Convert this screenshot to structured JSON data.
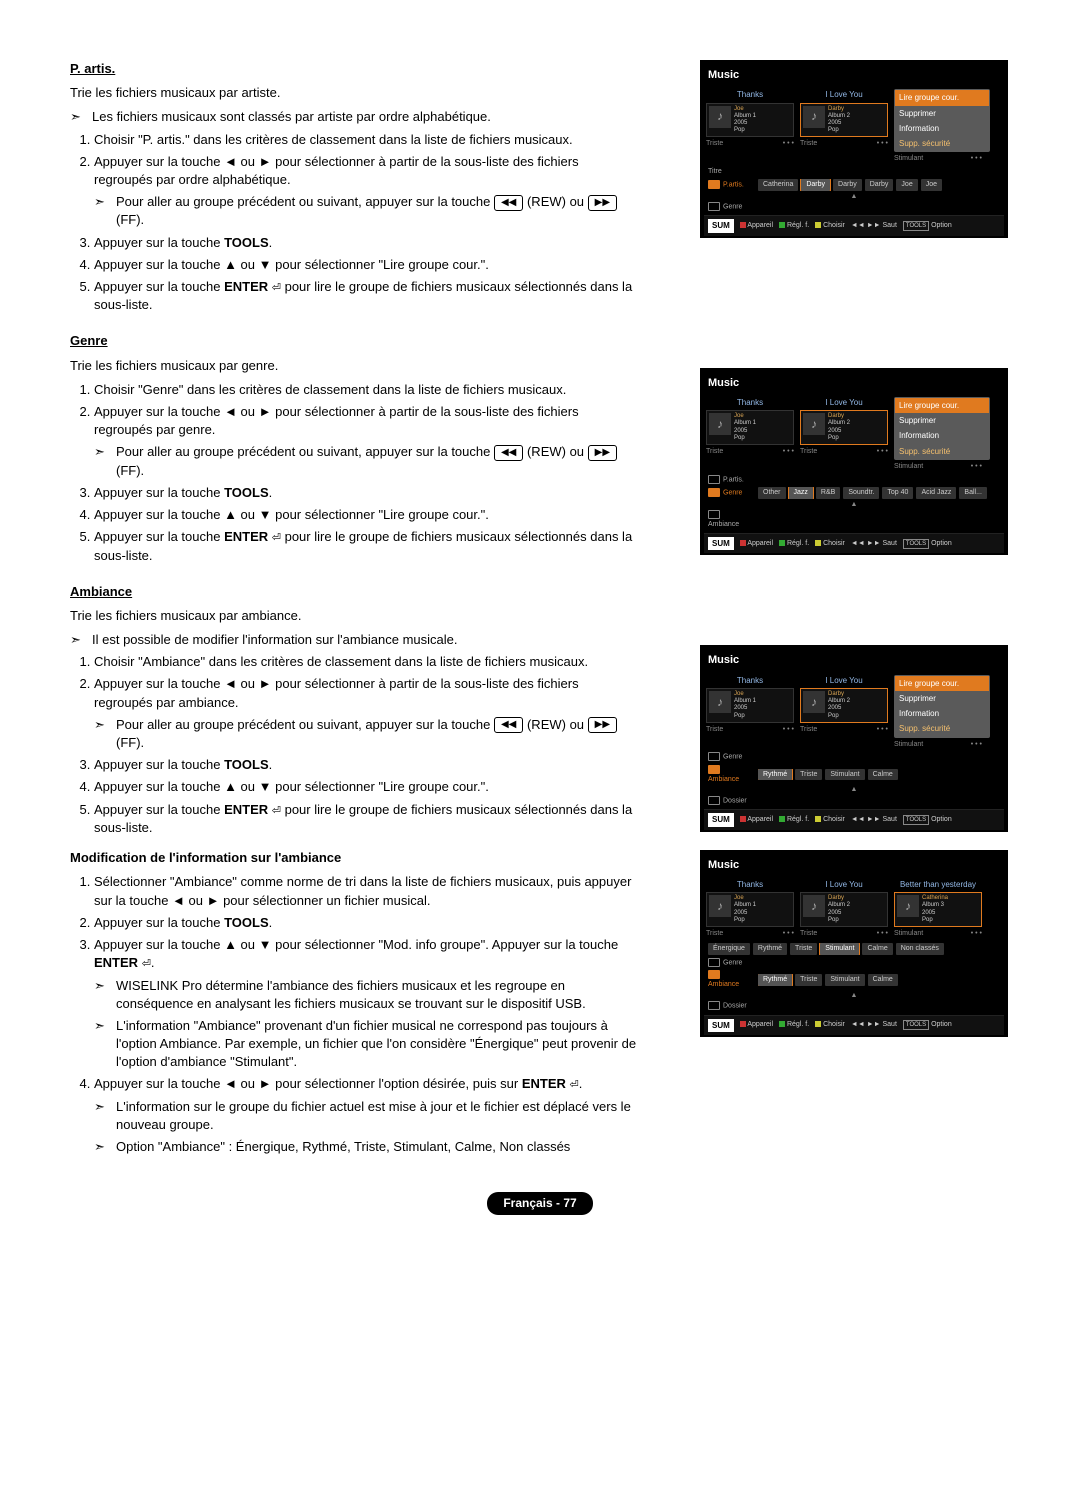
{
  "footer": "Français - 77",
  "common": {
    "key_rew": "◀◀",
    "key_ff": "▶▶",
    "rew_label": " (REW) ou ",
    "ff_label": " (FF).",
    "tools": "TOOLS",
    "enter": "ENTER",
    "enter_icon": "⏎"
  },
  "sections": [
    {
      "id": "partis",
      "title": "P. artis.",
      "intro": "Trie les fichiers musicaux par artiste.",
      "pre_note": "Les fichiers musicaux sont classés par artiste par ordre alphabétique.",
      "steps": [
        {
          "text_pre": "Choisir \"P. artis.\" dans les critères de classement dans la liste de fichiers musicaux."
        },
        {
          "text_pre": "Appuyer sur la touche ◄ ou ► pour sélectionner à partir de la sous-liste des fichiers regroupés par ordre alphabétique.",
          "sub": "Pour aller au groupe précédent ou suivant, appuyer sur la touche ",
          "has_keys": true
        },
        {
          "text_pre": "Appuyer sur la touche ",
          "bold": "TOOLS",
          "text_post": "."
        },
        {
          "text_pre": "Appuyer sur la touche ▲ ou ▼ pour sélectionner \"Lire groupe cour.\"."
        },
        {
          "text_pre": "Appuyer sur la touche ",
          "bold": "ENTER",
          "enter_icon": true,
          "text_post": " pour lire le groupe de fichiers musicaux sélectionnés dans la sous-liste."
        }
      ]
    },
    {
      "id": "genre",
      "title": "Genre",
      "intro": "Trie les fichiers musicaux par genre.",
      "steps": [
        {
          "text_pre": "Choisir \"Genre\" dans les critères de classement dans la liste de fichiers musicaux."
        },
        {
          "text_pre": "Appuyer sur la touche ◄ ou ► pour sélectionner à partir de la sous-liste des fichiers regroupés par genre.",
          "sub": "Pour aller au groupe précédent ou suivant, appuyer sur la touche ",
          "has_keys": true
        },
        {
          "text_pre": "Appuyer sur la touche ",
          "bold": "TOOLS",
          "text_post": "."
        },
        {
          "text_pre": "Appuyer sur la touche ▲ ou ▼ pour sélectionner \"Lire groupe cour.\"."
        },
        {
          "text_pre": "Appuyer sur la touche ",
          "bold": "ENTER",
          "enter_icon": true,
          "text_post": " pour lire le groupe de fichiers musicaux sélectionnés dans la sous-liste."
        }
      ]
    },
    {
      "id": "ambiance",
      "title": "Ambiance",
      "intro": "Trie les fichiers musicaux par ambiance.",
      "pre_note": "Il est possible de modifier l'information sur l'ambiance musicale.",
      "steps": [
        {
          "text_pre": "Choisir \"Ambiance\" dans les critères de classement dans la liste de fichiers musicaux."
        },
        {
          "text_pre": "Appuyer sur la touche ◄ ou ► pour sélectionner à partir de la sous-liste des fichiers regroupés par ambiance.",
          "sub": "Pour aller au groupe précédent ou suivant, appuyer sur la touche ",
          "has_keys": true
        },
        {
          "text_pre": "Appuyer sur la touche ",
          "bold": "TOOLS",
          "text_post": "."
        },
        {
          "text_pre": "Appuyer sur la touche ▲ ou ▼ pour sélectionner \"Lire groupe cour.\"."
        },
        {
          "text_pre": "Appuyer sur la touche ",
          "bold": "ENTER",
          "enter_icon": true,
          "text_post": " pour lire le groupe de fichiers musicaux sélectionnés dans la sous-liste."
        }
      ]
    },
    {
      "id": "modamb",
      "sub_title": "Modification de l'information sur l'ambiance",
      "steps": [
        {
          "text_pre": "Sélectionner \"Ambiance\" comme norme de tri dans la liste de fichiers musicaux, puis appuyer sur la touche ◄ ou ► pour sélectionner un fichier musical."
        },
        {
          "text_pre": "Appuyer sur la touche ",
          "bold": "TOOLS",
          "text_post": "."
        },
        {
          "text_pre": "Appuyer sur la touche ▲ ou ▼ pour sélectionner \"Mod. info groupe\". Appuyer sur la touche ",
          "bold": "ENTER",
          "enter_icon": true,
          "text_post": ".",
          "subs": [
            "WISELINK Pro détermine l'ambiance des fichiers musicaux et les regroupe en conséquence en analysant les fichiers musicaux se trouvant sur le dispositif USB.",
            "L'information \"Ambiance\" provenant d'un fichier musical ne correspond pas toujours à l'option Ambiance. Par exemple, un fichier que l'on considère \"Énergique\" peut provenir de l'option d'ambiance \"Stimulant\"."
          ]
        },
        {
          "text_pre": "Appuyer sur la touche ◄ ou ► pour sélectionner l'option désirée, puis sur ",
          "bold": "ENTER",
          "enter_icon": true,
          "text_post": ".",
          "subs": [
            "L'information sur le groupe du fichier actuel est mise à jour et le fichier est déplacé vers le nouveau groupe.",
            "Option \"Ambiance\" : Énergique, Rythmé, Triste, Stimulant, Calme, Non classés"
          ]
        }
      ]
    }
  ],
  "panels": [
    {
      "id": "p1",
      "title": "Music",
      "thumbs": [
        {
          "head": "Thanks",
          "artist": "Joe",
          "album": "Album 1",
          "year": "2005",
          "genre": "Pop",
          "foot": "Triste"
        },
        {
          "head": "I Love You",
          "artist": "Darby",
          "album": "Album 2",
          "year": "2005",
          "genre": "Pop",
          "foot": "Triste",
          "hl": true
        }
      ],
      "third_foot": "Stimulant",
      "menu": [
        {
          "t": "Lire groupe cour.",
          "hl": true
        },
        {
          "t": "Supprimer"
        },
        {
          "t": "Information"
        },
        {
          "t": "Supp. sécurité",
          "sp": true
        }
      ],
      "below": "Titre",
      "sort_pre": [],
      "sort_active": {
        "label": "P.artis.",
        "chips": [
          "Catherina",
          "Darby",
          "Darby",
          "Darby",
          "Joe",
          "Joe"
        ],
        "hl_idx": 1
      },
      "sort_post": [
        "Genre"
      ],
      "bottom": [
        "Appareil",
        "Régl. f.",
        "Choisir",
        "◄◄ ►► Saut",
        "Option"
      ]
    },
    {
      "id": "p2",
      "title": "Music",
      "thumbs": [
        {
          "head": "Thanks",
          "artist": "Joe",
          "album": "Album 1",
          "year": "2005",
          "genre": "Pop",
          "foot": "Triste"
        },
        {
          "head": "I Love You",
          "artist": "Darby",
          "album": "Album 2",
          "year": "2005",
          "genre": "Pop",
          "foot": "Triste",
          "hl": true
        }
      ],
      "third_foot": "Stimulant",
      "menu": [
        {
          "t": "Lire groupe cour.",
          "hl": true
        },
        {
          "t": "Supprimer"
        },
        {
          "t": "Information"
        },
        {
          "t": "Supp. sécurité",
          "sp": true
        }
      ],
      "below": "",
      "sort_pre": [
        "P.artis."
      ],
      "sort_active": {
        "label": "Genre",
        "chips": [
          "Other",
          "Jazz",
          "R&B",
          "Soundtr.",
          "Top 40",
          "Acid Jazz",
          "Ball..."
        ],
        "hl_idx": 1
      },
      "sort_post": [
        "Ambiance"
      ],
      "bottom": [
        "Appareil",
        "Régl. f.",
        "Choisir",
        "◄◄ ►► Saut",
        "Option"
      ]
    },
    {
      "id": "p3",
      "title": "Music",
      "thumbs": [
        {
          "head": "Thanks",
          "artist": "Joe",
          "album": "Album 1",
          "year": "2005",
          "genre": "Pop",
          "foot": "Triste"
        },
        {
          "head": "I Love You",
          "artist": "Darby",
          "album": "Album 2",
          "year": "2005",
          "genre": "Pop",
          "foot": "Triste",
          "hl": true
        }
      ],
      "third_foot": "Stimulant",
      "menu": [
        {
          "t": "Lire groupe cour.",
          "hl": true
        },
        {
          "t": "Supprimer"
        },
        {
          "t": "Information"
        },
        {
          "t": "Supp. sécurité",
          "sp": true
        }
      ],
      "below": "",
      "sort_pre": [
        "Genre"
      ],
      "sort_active": {
        "label": "Ambiance",
        "chips": [
          "Rythmé",
          "Triste",
          "Stimulant",
          "Calme"
        ],
        "hl_idx": 0
      },
      "sort_post": [
        "Dossier"
      ],
      "bottom": [
        "Appareil",
        "Régl. f.",
        "Choisir",
        "◄◄ ►► Saut",
        "Option"
      ]
    },
    {
      "id": "p4",
      "title": "Music",
      "thumbs": [
        {
          "head": "Thanks",
          "artist": "Joe",
          "album": "Album 1",
          "year": "2005",
          "genre": "Pop",
          "foot": "Triste"
        },
        {
          "head": "I Love You",
          "artist": "Darby",
          "album": "Album 2",
          "year": "2005",
          "genre": "Pop",
          "foot": "Triste"
        },
        {
          "head": "Better than yesterday",
          "artist": "Catherina",
          "album": "Album 3",
          "year": "2005",
          "genre": "Pop",
          "foot": "Stimulant",
          "hl": true
        }
      ],
      "chip_strip": [
        "Énergique",
        "Rythmé",
        "Triste",
        "Stimulant",
        "Calme",
        "Non classés"
      ],
      "chip_strip_hl": 3,
      "menu": null,
      "below": "",
      "sort_pre": [
        "Genre"
      ],
      "sort_active": {
        "label": "Ambiance",
        "chips": [
          "Rythmé",
          "Triste",
          "Stimulant",
          "Calme"
        ],
        "hl_idx": 0
      },
      "sort_post": [
        "Dossier"
      ],
      "bottom": [
        "Appareil",
        "Régl. f.",
        "Choisir",
        "◄◄ ►► Saut",
        "Option"
      ]
    }
  ]
}
